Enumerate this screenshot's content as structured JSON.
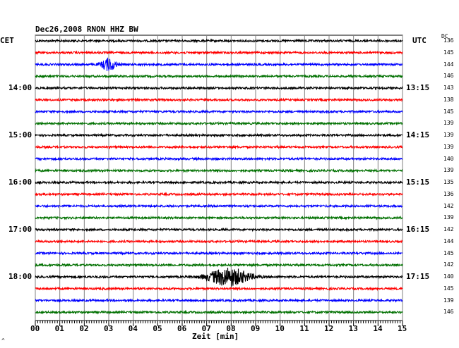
{
  "chart_data": {
    "type": "line",
    "title": "Dec26,2008   RNON HHZ BW",
    "xlabel": "Zeit [min]",
    "xlim": [
      0,
      15
    ],
    "x_ticks": [
      "00",
      "01",
      "02",
      "03",
      "04",
      "05",
      "06",
      "07",
      "08",
      "09",
      "10",
      "11",
      "12",
      "13",
      "14",
      "15"
    ],
    "left_axis_label": "CET",
    "right_axis_label": "UTC",
    "dc_label": "DC",
    "left_hour_labels": [
      "14:00",
      "15:00",
      "16:00",
      "17:00",
      "18:00"
    ],
    "right_hour_labels": [
      "13:15",
      "14:15",
      "15:15",
      "16:15",
      "17:15"
    ],
    "dc_values": [
      "136",
      "145",
      "144",
      "146",
      "143",
      "138",
      "145",
      "139",
      "139",
      "139",
      "140",
      "139",
      "135",
      "136",
      "142",
      "139",
      "142",
      "144",
      "145",
      "142",
      "140",
      "145",
      "139",
      "146"
    ],
    "trace_colors": [
      "#000000",
      "#ff0000",
      "#0000ff",
      "#007000"
    ],
    "grid": true,
    "events": [
      {
        "trace_index": 2,
        "center_min": 3.0,
        "amplitude": "medium"
      },
      {
        "trace_index": 20,
        "center_min": 7.9,
        "amplitude": "large"
      }
    ],
    "footer_mark": "^"
  }
}
